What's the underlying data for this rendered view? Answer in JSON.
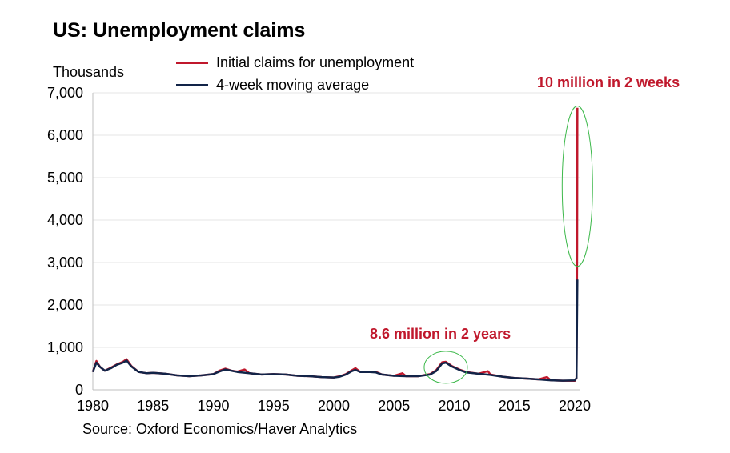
{
  "chart_data": {
    "type": "line",
    "title": "US: Unemployment claims",
    "ylabel": "Thousands",
    "xlabel": "",
    "xlim": [
      1980,
      2020.4
    ],
    "ylim": [
      0,
      7000
    ],
    "yticks": [
      0,
      1000,
      2000,
      3000,
      4000,
      5000,
      6000,
      7000
    ],
    "ytick_labels": [
      "0",
      "1,000",
      "2,000",
      "3,000",
      "4,000",
      "5,000",
      "6,000",
      "7,000"
    ],
    "xticks": [
      1980,
      1985,
      1990,
      1995,
      2000,
      2005,
      2010,
      2015,
      2020
    ],
    "xtick_labels": [
      "1980",
      "1985",
      "1990",
      "1995",
      "2000",
      "2005",
      "2010",
      "2015",
      "2020"
    ],
    "grid": true,
    "legend_position": "top",
    "series": [
      {
        "name": "Initial claims for unemployment",
        "color": "#c0182c",
        "x": [
          1980.0,
          1980.3,
          1980.6,
          1981.0,
          1981.5,
          1982.0,
          1982.5,
          1982.8,
          1983.2,
          1983.8,
          1984.5,
          1985.0,
          1986.0,
          1987.0,
          1988.0,
          1989.0,
          1990.0,
          1990.5,
          1991.0,
          1991.5,
          1992.0,
          1992.6,
          1993.0,
          1994.0,
          1995.0,
          1996.0,
          1997.0,
          1998.0,
          1999.0,
          2000.0,
          2000.5,
          2001.0,
          2001.5,
          2001.8,
          2002.2,
          2003.0,
          2003.5,
          2004.0,
          2005.0,
          2005.7,
          2006.0,
          2007.0,
          2008.0,
          2008.5,
          2009.0,
          2009.3,
          2009.8,
          2010.5,
          2011.0,
          2012.0,
          2012.8,
          2013.0,
          2014.0,
          2015.0,
          2016.0,
          2017.0,
          2017.7,
          2018.0,
          2019.0,
          2020.0,
          2020.15,
          2020.2,
          2020.22
        ],
        "values": [
          420,
          680,
          540,
          450,
          520,
          600,
          660,
          720,
          560,
          420,
          390,
          400,
          380,
          340,
          320,
          340,
          370,
          450,
          500,
          450,
          430,
          480,
          390,
          360,
          370,
          360,
          330,
          320,
          300,
          290,
          320,
          370,
          460,
          510,
          420,
          420,
          420,
          360,
          330,
          390,
          320,
          320,
          370,
          460,
          650,
          660,
          560,
          470,
          420,
          380,
          440,
          360,
          310,
          280,
          265,
          245,
          300,
          225,
          215,
          212,
          282,
          3307,
          6648
        ]
      },
      {
        "name": "4-week moving average",
        "color": "#122448",
        "x": [
          1980.0,
          1980.3,
          1980.6,
          1981.0,
          1981.5,
          1982.0,
          1982.5,
          1982.8,
          1983.2,
          1983.8,
          1984.5,
          1985.0,
          1986.0,
          1987.0,
          1988.0,
          1989.0,
          1990.0,
          1990.5,
          1991.0,
          1991.5,
          1992.0,
          1993.0,
          1994.0,
          1995.0,
          1996.0,
          1997.0,
          1998.0,
          1999.0,
          2000.0,
          2000.5,
          2001.0,
          2001.5,
          2001.8,
          2002.2,
          2003.0,
          2003.5,
          2004.0,
          2005.0,
          2006.0,
          2007.0,
          2008.0,
          2008.5,
          2009.0,
          2009.3,
          2009.8,
          2010.5,
          2011.0,
          2012.0,
          2013.0,
          2014.0,
          2015.0,
          2016.0,
          2017.0,
          2018.0,
          2019.0,
          2020.0,
          2020.15,
          2020.22
        ],
        "values": [
          420,
          640,
          540,
          450,
          510,
          590,
          640,
          690,
          550,
          420,
          390,
          400,
          380,
          340,
          320,
          340,
          370,
          430,
          480,
          450,
          420,
          390,
          360,
          370,
          360,
          330,
          320,
          300,
          290,
          310,
          360,
          440,
          470,
          420,
          420,
          410,
          360,
          330,
          320,
          320,
          360,
          440,
          620,
          640,
          550,
          460,
          410,
          380,
          350,
          310,
          280,
          265,
          245,
          225,
          215,
          220,
          280,
          2600
        ]
      }
    ],
    "annotations": [
      {
        "text": "10 million in 2 weeks",
        "color": "#c0182c"
      },
      {
        "text": "8.6 million in 2 years",
        "color": "#c0182c"
      }
    ],
    "highlight_color": "#3cb84a"
  },
  "source": "Source: Oxford Economics/Haver Analytics"
}
